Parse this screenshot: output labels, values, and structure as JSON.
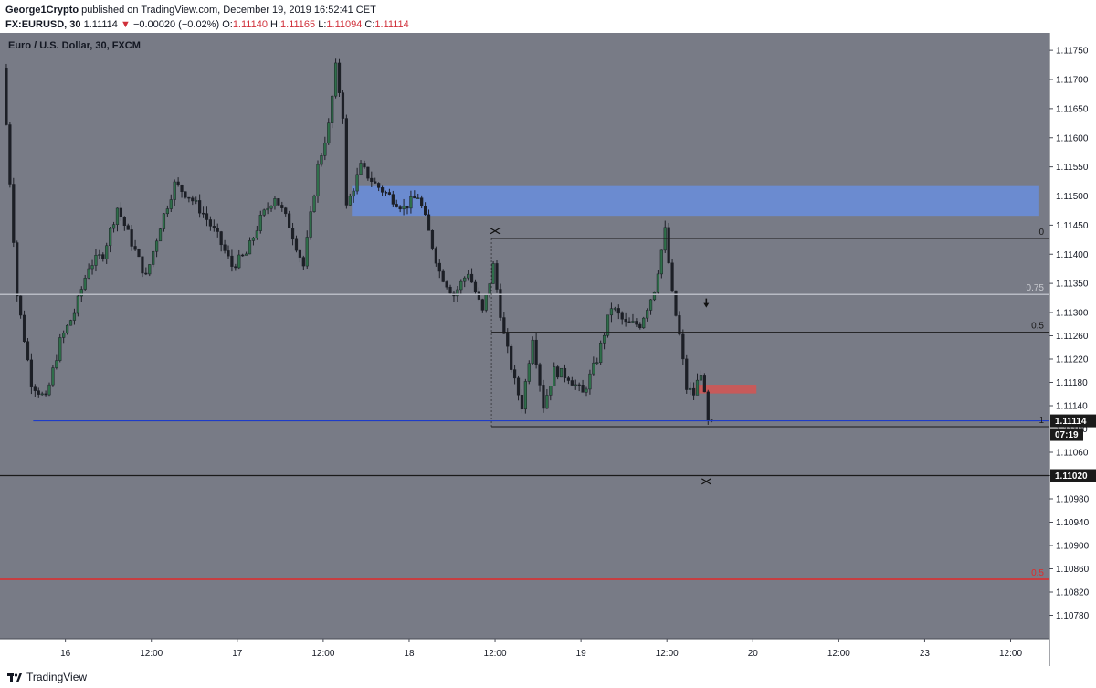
{
  "header": {
    "publisher": "George1Crypto",
    "published_text": "published on TradingView.com, December 19, 2019 16:52:41 CET",
    "symbol": "FX:EURUSD, 30",
    "last": "1.11114",
    "change_arrow": "▼",
    "change": "−0.00020 (−0.02%)",
    "o_label": "O:",
    "o_value": "1.11140",
    "h_label": "H:",
    "h_value": "1.11165",
    "l_label": "L:",
    "l_value": "1.11094",
    "c_label": "C:",
    "c_value": "1.11114"
  },
  "footer": {
    "brand": "TradingView"
  },
  "colors": {
    "plot_bg": "#787b86",
    "axis_bg": "#ffffff",
    "bull": "#2f6e4a",
    "bear": "#1c1f26",
    "supply_zone": "#6b8bd0",
    "red_zone": "#c75a5a",
    "blue_line": "#1e3cc8",
    "red_line": "#e02a2a",
    "grey_line": "#b8bbc4",
    "black_line": "#1a1a1a"
  },
  "chart_data": {
    "type": "candlestick",
    "title": "Euro / U.S. Dollar, 30, FXCM",
    "price_axis": {
      "ylim": [
        1.1074,
        1.1178
      ],
      "ticks": [
        "1.11750",
        "1.11700",
        "1.11650",
        "1.11600",
        "1.11550",
        "1.11500",
        "1.11450",
        "1.11400",
        "1.11350",
        "1.11300",
        "1.11260",
        "1.11220",
        "1.11180",
        "1.11140",
        "1.11100",
        "1.11060",
        "1.11020",
        "1.10980",
        "1.10940",
        "1.10900",
        "1.10860",
        "1.10820",
        "1.10780"
      ]
    },
    "time_axis": {
      "labels": [
        {
          "text": "16",
          "bar": 17
        },
        {
          "text": "12:00",
          "bar": 41
        },
        {
          "text": "17",
          "bar": 65
        },
        {
          "text": "12:00",
          "bar": 89
        },
        {
          "text": "18",
          "bar": 113
        },
        {
          "text": "12:00",
          "bar": 137
        },
        {
          "text": "19",
          "bar": 161
        },
        {
          "text": "12:00",
          "bar": 185
        },
        {
          "text": "20",
          "bar": 209
        },
        {
          "text": "12:00",
          "bar": 233
        },
        {
          "text": "23",
          "bar": 257
        },
        {
          "text": "12:00",
          "bar": 281
        }
      ]
    },
    "anchors": [
      [
        0,
        1.1172
      ],
      [
        4,
        1.1133
      ],
      [
        8,
        1.1118
      ],
      [
        12,
        1.1115
      ],
      [
        16,
        1.1125
      ],
      [
        20,
        1.113
      ],
      [
        24,
        1.1138
      ],
      [
        28,
        1.114
      ],
      [
        32,
        1.1148
      ],
      [
        36,
        1.1142
      ],
      [
        40,
        1.1136
      ],
      [
        44,
        1.1145
      ],
      [
        48,
        1.1152
      ],
      [
        52,
        1.115
      ],
      [
        56,
        1.1147
      ],
      [
        60,
        1.1143
      ],
      [
        64,
        1.1138
      ],
      [
        68,
        1.114
      ],
      [
        72,
        1.1146
      ],
      [
        76,
        1.115
      ],
      [
        80,
        1.1145
      ],
      [
        84,
        1.1138
      ],
      [
        88,
        1.1155
      ],
      [
        91,
        1.1162
      ],
      [
        93,
        1.1172
      ],
      [
        95,
        1.1164
      ],
      [
        96,
        1.1148
      ],
      [
        100,
        1.1155
      ],
      [
        104,
        1.1152
      ],
      [
        108,
        1.115
      ],
      [
        112,
        1.1148
      ],
      [
        116,
        1.115
      ],
      [
        118,
        1.1146
      ],
      [
        122,
        1.1137
      ],
      [
        126,
        1.1133
      ],
      [
        130,
        1.1137
      ],
      [
        134,
        1.113
      ],
      [
        137,
        1.1138
      ],
      [
        140,
        1.1126
      ],
      [
        143,
        1.1118
      ],
      [
        145,
        1.1114
      ],
      [
        148,
        1.1126
      ],
      [
        151,
        1.1114
      ],
      [
        154,
        1.112
      ],
      [
        158,
        1.1119
      ],
      [
        162,
        1.1116
      ],
      [
        166,
        1.1122
      ],
      [
        170,
        1.1131
      ],
      [
        174,
        1.1128
      ],
      [
        178,
        1.1128
      ],
      [
        182,
        1.1134
      ],
      [
        185,
        1.1144
      ],
      [
        187,
        1.1133
      ],
      [
        189,
        1.1126
      ],
      [
        191,
        1.1117
      ],
      [
        193,
        1.1116
      ],
      [
        195,
        1.112
      ],
      [
        197,
        1.1111
      ]
    ],
    "total_bars": 290,
    "supply_zone": {
      "from_bar": 97,
      "to_bar": 289,
      "top": 1.11517,
      "bottom": 1.11466
    },
    "red_zone": {
      "from_bar": 193,
      "to_bar": 210,
      "top": 1.11176,
      "bottom": 1.11161
    },
    "fib": {
      "from_bar": 136,
      "to_bar": 289,
      "levels": [
        {
          "label": "0",
          "price": 1.11427
        },
        {
          "label": "0.5",
          "price": 1.11266
        },
        {
          "label": "1",
          "price": 1.11104
        }
      ]
    },
    "fib_outer": [
      {
        "label": "0.75",
        "price": 1.11331
      },
      {
        "label": "0.5",
        "price": 1.10842
      }
    ],
    "horizontal_lines": {
      "blue_support": 1.11114,
      "black_line": 1.1102,
      "red_line": 1.10842
    },
    "markers": {
      "down_arrow": {
        "bar": 196,
        "price": 1.1131
      },
      "cross_top": {
        "bar": 137,
        "price": 1.1144
      },
      "cross_bottom": {
        "bar": 196,
        "price": 1.1101
      }
    },
    "price_badges": {
      "last": "1.11114",
      "countdown": "07:19",
      "line_label": "1.11020"
    }
  }
}
